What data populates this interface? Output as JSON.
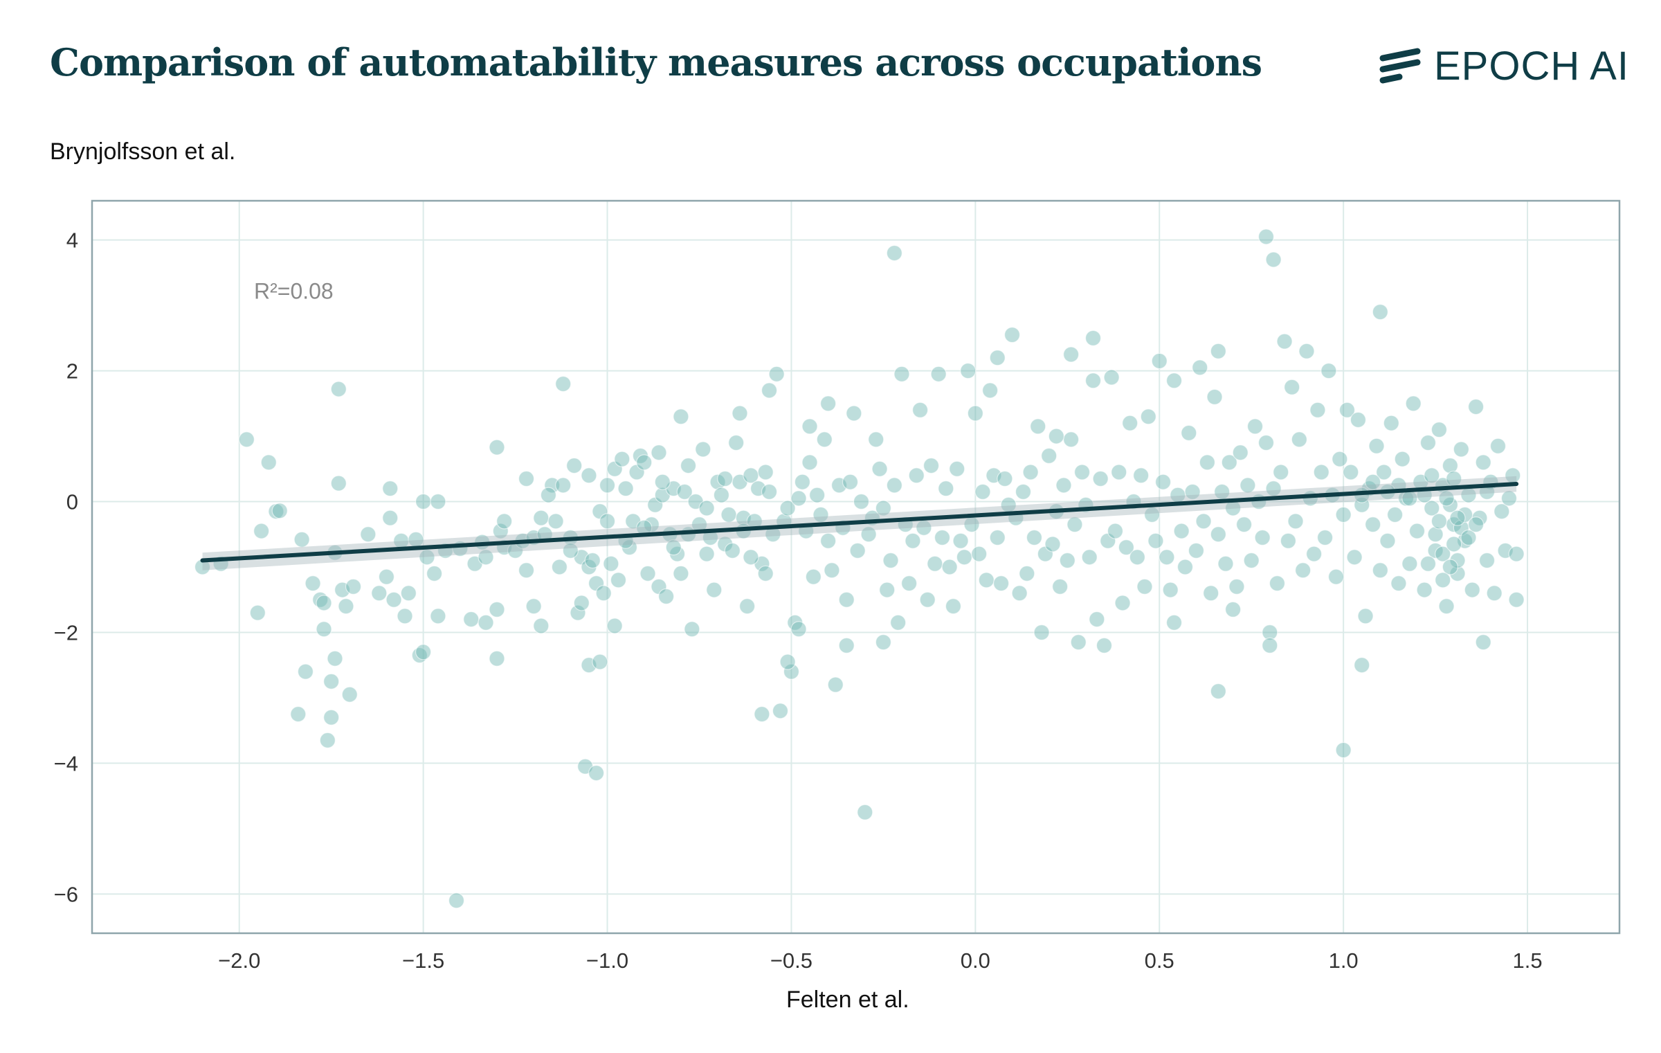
{
  "header": {
    "title": "Comparison of automatability measures across occupations",
    "logo_text": "EPOCH AI"
  },
  "chart_data": {
    "type": "scatter",
    "xlabel": "Felten et al.",
    "ylabel": "Brynjolfsson et al.",
    "xlim": [
      -2.4,
      1.75
    ],
    "ylim": [
      -6.6,
      4.6
    ],
    "xticks": [
      -2.0,
      -1.5,
      -1.0,
      -0.5,
      0.0,
      0.5,
      1.0,
      1.5
    ],
    "xtick_labels": [
      "−2.0",
      "−1.5",
      "−1.0",
      "−0.5",
      "0.0",
      "0.5",
      "1.0",
      "1.5"
    ],
    "yticks": [
      4,
      2,
      0,
      -2,
      -4,
      -6
    ],
    "ytick_labels": [
      "4",
      "2",
      "0",
      "−2",
      "−4",
      "−6"
    ],
    "grid": true,
    "annotation": "R²=0.08",
    "point_color": "#6fb5b1",
    "line_color": "#0f3d46",
    "regression": {
      "x": [
        -2.1,
        1.47
      ],
      "y": [
        -0.9,
        0.27
      ],
      "ci_lower": [
        -1.05,
        0.15
      ],
      "ci_upper": [
        -0.78,
        0.39
      ]
    },
    "points": [
      [
        -2.1,
        -1.0
      ],
      [
        -2.05,
        -0.95
      ],
      [
        -1.98,
        0.95
      ],
      [
        -1.95,
        -1.7
      ],
      [
        -1.94,
        -0.45
      ],
      [
        -1.92,
        0.6
      ],
      [
        -1.9,
        -0.15
      ],
      [
        -1.89,
        -0.14
      ],
      [
        -1.84,
        -3.25
      ],
      [
        -1.83,
        -0.58
      ],
      [
        -1.82,
        -2.6
      ],
      [
        -1.8,
        -1.25
      ],
      [
        -1.78,
        -1.5
      ],
      [
        -1.77,
        -1.95
      ],
      [
        -1.77,
        -1.55
      ],
      [
        -1.76,
        -3.65
      ],
      [
        -1.75,
        -2.75
      ],
      [
        -1.75,
        -3.3
      ],
      [
        -1.74,
        -2.4
      ],
      [
        -1.74,
        -0.78
      ],
      [
        -1.73,
        0.28
      ],
      [
        -1.73,
        1.72
      ],
      [
        -1.72,
        -1.35
      ],
      [
        -1.71,
        -1.6
      ],
      [
        -1.7,
        -2.95
      ],
      [
        -1.69,
        -1.3
      ],
      [
        -1.65,
        -0.5
      ],
      [
        -1.62,
        -1.4
      ],
      [
        -1.6,
        -1.15
      ],
      [
        -1.59,
        0.2
      ],
      [
        -1.59,
        -0.25
      ],
      [
        -1.58,
        -1.5
      ],
      [
        -1.56,
        -0.6
      ],
      [
        -1.55,
        -1.75
      ],
      [
        -1.54,
        -1.4
      ],
      [
        -1.52,
        -0.58
      ],
      [
        -1.51,
        -2.35
      ],
      [
        -1.5,
        0.0
      ],
      [
        -1.49,
        -0.85
      ],
      [
        -1.47,
        -1.1
      ],
      [
        -1.46,
        0.0
      ],
      [
        -1.46,
        -1.75
      ],
      [
        -1.44,
        -0.75
      ],
      [
        -1.4,
        -0.72
      ],
      [
        -1.37,
        -1.8
      ],
      [
        -1.36,
        -0.95
      ],
      [
        -1.34,
        -0.62
      ],
      [
        -1.33,
        -1.85
      ],
      [
        -1.33,
        -0.85
      ],
      [
        -1.3,
        -2.4
      ],
      [
        -1.3,
        -1.65
      ],
      [
        -1.3,
        0.83
      ],
      [
        -1.29,
        -0.45
      ],
      [
        -1.28,
        -0.7
      ],
      [
        -1.25,
        -0.75
      ],
      [
        -1.23,
        -0.6
      ],
      [
        -1.22,
        -1.05
      ],
      [
        -1.2,
        -0.55
      ],
      [
        -1.2,
        -1.6
      ],
      [
        -1.18,
        -0.25
      ],
      [
        -1.17,
        -0.5
      ],
      [
        -1.15,
        0.25
      ],
      [
        -1.13,
        -1.0
      ],
      [
        -1.12,
        0.25
      ],
      [
        -1.12,
        1.8
      ],
      [
        -1.1,
        -0.55
      ],
      [
        -1.09,
        0.55
      ],
      [
        -1.08,
        -1.7
      ],
      [
        -1.07,
        -1.55
      ],
      [
        -1.07,
        -0.85
      ],
      [
        -1.06,
        -4.05
      ],
      [
        -1.05,
        -1.0
      ],
      [
        -1.05,
        -2.5
      ],
      [
        -1.04,
        -0.9
      ],
      [
        -1.03,
        -1.25
      ],
      [
        -1.02,
        -2.45
      ],
      [
        -1.02,
        -0.15
      ],
      [
        -1.01,
        -1.4
      ],
      [
        -1.0,
        -0.3
      ],
      [
        -0.99,
        -0.95
      ],
      [
        -0.98,
        0.5
      ],
      [
        -0.97,
        -1.2
      ],
      [
        -0.96,
        0.65
      ],
      [
        -0.95,
        0.2
      ],
      [
        -0.94,
        -0.7
      ],
      [
        -0.93,
        -0.3
      ],
      [
        -0.92,
        0.45
      ],
      [
        -0.91,
        0.7
      ],
      [
        -0.9,
        0.6
      ],
      [
        -0.89,
        -1.1
      ],
      [
        -0.88,
        -0.35
      ],
      [
        -0.87,
        -0.05
      ],
      [
        -0.86,
        -1.3
      ],
      [
        -0.85,
        0.1
      ],
      [
        -0.84,
        -1.45
      ],
      [
        -0.83,
        -0.5
      ],
      [
        -0.82,
        0.2
      ],
      [
        -0.81,
        -0.8
      ],
      [
        -0.8,
        1.3
      ],
      [
        -0.8,
        -1.1
      ],
      [
        -0.79,
        0.15
      ],
      [
        -0.78,
        -0.5
      ],
      [
        -0.77,
        -1.95
      ],
      [
        -0.76,
        0.0
      ],
      [
        -0.75,
        -0.35
      ],
      [
        -0.74,
        0.8
      ],
      [
        -0.73,
        -0.8
      ],
      [
        -0.72,
        -0.55
      ],
      [
        -0.71,
        -1.35
      ],
      [
        -0.7,
        0.3
      ],
      [
        -0.69,
        0.1
      ],
      [
        -0.68,
        -0.65
      ],
      [
        -0.67,
        -0.2
      ],
      [
        -0.66,
        -0.75
      ],
      [
        -0.65,
        0.9
      ],
      [
        -0.64,
        0.3
      ],
      [
        -0.63,
        -0.25
      ],
      [
        -0.62,
        -1.6
      ],
      [
        -0.61,
        0.4
      ],
      [
        -0.6,
        -0.3
      ],
      [
        -0.59,
        0.2
      ],
      [
        -0.58,
        -0.95
      ],
      [
        -0.57,
        -1.1
      ],
      [
        -0.56,
        0.15
      ],
      [
        -0.55,
        -0.5
      ],
      [
        -0.54,
        1.95
      ],
      [
        -0.53,
        -3.2
      ],
      [
        -0.52,
        -0.3
      ],
      [
        -0.51,
        -0.1
      ],
      [
        -0.5,
        -2.6
      ],
      [
        -0.49,
        -1.85
      ],
      [
        -0.48,
        -1.95
      ],
      [
        -0.47,
        0.3
      ],
      [
        -0.46,
        -0.45
      ],
      [
        -0.45,
        0.6
      ],
      [
        -0.44,
        -1.15
      ],
      [
        -0.43,
        0.1
      ],
      [
        -0.42,
        -0.2
      ],
      [
        -0.41,
        0.95
      ],
      [
        -0.4,
        -0.6
      ],
      [
        -0.39,
        -1.05
      ],
      [
        -0.38,
        -2.8
      ],
      [
        -0.37,
        0.25
      ],
      [
        -0.36,
        -0.4
      ],
      [
        -0.35,
        -1.5
      ],
      [
        -0.34,
        0.3
      ],
      [
        -0.33,
        1.35
      ],
      [
        -0.32,
        -0.75
      ],
      [
        -0.31,
        0.0
      ],
      [
        -0.3,
        -4.75
      ],
      [
        -0.29,
        -0.5
      ],
      [
        -0.28,
        -0.25
      ],
      [
        -0.27,
        0.95
      ],
      [
        -0.26,
        0.5
      ],
      [
        -0.25,
        -0.1
      ],
      [
        -0.24,
        -1.35
      ],
      [
        -0.23,
        -0.9
      ],
      [
        -0.22,
        0.25
      ],
      [
        -0.21,
        -1.85
      ],
      [
        -0.2,
        1.95
      ],
      [
        -0.19,
        -0.35
      ],
      [
        -0.18,
        -1.25
      ],
      [
        -0.17,
        -0.6
      ],
      [
        -0.16,
        0.4
      ],
      [
        -0.15,
        1.4
      ],
      [
        -0.14,
        -0.4
      ],
      [
        -0.13,
        -1.5
      ],
      [
        -0.12,
        0.55
      ],
      [
        -0.11,
        -0.95
      ],
      [
        -0.1,
        1.95
      ],
      [
        -0.09,
        -0.55
      ],
      [
        -0.08,
        0.2
      ],
      [
        -0.07,
        -1.0
      ],
      [
        -0.06,
        -1.6
      ],
      [
        -0.05,
        0.5
      ],
      [
        -0.04,
        -0.6
      ],
      [
        -0.03,
        -0.85
      ],
      [
        -0.02,
        2.0
      ],
      [
        -0.01,
        -0.35
      ],
      [
        0.0,
        1.35
      ],
      [
        0.01,
        -0.8
      ],
      [
        0.02,
        0.15
      ],
      [
        0.03,
        -1.2
      ],
      [
        0.04,
        1.7
      ],
      [
        0.05,
        0.4
      ],
      [
        0.06,
        -0.55
      ],
      [
        0.07,
        -1.25
      ],
      [
        0.08,
        0.35
      ],
      [
        0.09,
        -0.05
      ],
      [
        0.1,
        2.55
      ],
      [
        0.11,
        -0.25
      ],
      [
        0.12,
        -1.4
      ],
      [
        0.13,
        0.15
      ],
      [
        0.14,
        -1.1
      ],
      [
        0.15,
        0.45
      ],
      [
        0.16,
        -0.55
      ],
      [
        0.17,
        1.15
      ],
      [
        0.18,
        -2.0
      ],
      [
        0.19,
        -0.8
      ],
      [
        0.2,
        0.7
      ],
      [
        0.21,
        -0.65
      ],
      [
        0.22,
        -0.15
      ],
      [
        0.23,
        -1.3
      ],
      [
        0.24,
        0.25
      ],
      [
        0.25,
        -0.9
      ],
      [
        0.26,
        0.95
      ],
      [
        0.27,
        -0.35
      ],
      [
        0.28,
        -2.15
      ],
      [
        0.29,
        0.45
      ],
      [
        0.3,
        -0.05
      ],
      [
        0.31,
        -0.85
      ],
      [
        0.32,
        1.85
      ],
      [
        0.33,
        -1.8
      ],
      [
        0.34,
        0.35
      ],
      [
        0.35,
        -2.2
      ],
      [
        0.36,
        -0.6
      ],
      [
        0.37,
        1.9
      ],
      [
        0.38,
        -0.45
      ],
      [
        0.39,
        0.45
      ],
      [
        0.4,
        -1.55
      ],
      [
        0.41,
        -0.7
      ],
      [
        0.42,
        1.2
      ],
      [
        0.43,
        0.0
      ],
      [
        0.44,
        -0.85
      ],
      [
        0.45,
        0.4
      ],
      [
        0.46,
        -1.3
      ],
      [
        0.47,
        1.3
      ],
      [
        0.48,
        -0.2
      ],
      [
        0.49,
        -0.6
      ],
      [
        0.5,
        2.15
      ],
      [
        0.51,
        0.3
      ],
      [
        0.52,
        -0.85
      ],
      [
        0.53,
        -1.35
      ],
      [
        0.54,
        1.85
      ],
      [
        0.55,
        0.1
      ],
      [
        0.56,
        -0.45
      ],
      [
        0.57,
        -1.0
      ],
      [
        0.58,
        1.05
      ],
      [
        0.59,
        0.15
      ],
      [
        0.6,
        -0.75
      ],
      [
        0.61,
        2.05
      ],
      [
        0.62,
        -0.3
      ],
      [
        0.63,
        0.6
      ],
      [
        0.64,
        -1.4
      ],
      [
        0.65,
        1.6
      ],
      [
        0.66,
        -0.5
      ],
      [
        0.67,
        0.15
      ],
      [
        0.68,
        -0.95
      ],
      [
        0.69,
        0.6
      ],
      [
        0.7,
        -0.1
      ],
      [
        0.71,
        -1.3
      ],
      [
        0.72,
        0.75
      ],
      [
        0.73,
        -0.35
      ],
      [
        0.74,
        0.25
      ],
      [
        0.75,
        -0.9
      ],
      [
        0.76,
        1.15
      ],
      [
        0.77,
        0.0
      ],
      [
        0.78,
        -0.55
      ],
      [
        0.79,
        0.9
      ],
      [
        0.8,
        -2.0
      ],
      [
        0.81,
        0.2
      ],
      [
        0.82,
        -1.25
      ],
      [
        0.83,
        0.45
      ],
      [
        0.84,
        2.45
      ],
      [
        0.85,
        -0.6
      ],
      [
        0.86,
        1.75
      ],
      [
        0.87,
        -0.3
      ],
      [
        0.88,
        0.95
      ],
      [
        0.89,
        -1.05
      ],
      [
        0.9,
        2.3
      ],
      [
        0.91,
        0.05
      ],
      [
        0.92,
        -0.8
      ],
      [
        0.93,
        1.4
      ],
      [
        0.94,
        0.45
      ],
      [
        0.95,
        -0.55
      ],
      [
        0.96,
        2.0
      ],
      [
        0.97,
        0.1
      ],
      [
        0.98,
        -1.15
      ],
      [
        0.99,
        0.65
      ],
      [
        1.0,
        -0.2
      ],
      [
        1.01,
        1.4
      ],
      [
        1.02,
        0.45
      ],
      [
        1.03,
        -0.85
      ],
      [
        1.04,
        1.25
      ],
      [
        1.05,
        -0.05
      ],
      [
        1.06,
        -1.75
      ],
      [
        1.07,
        0.2
      ],
      [
        1.08,
        -0.35
      ],
      [
        1.09,
        0.85
      ],
      [
        1.1,
        -1.05
      ],
      [
        1.11,
        0.45
      ],
      [
        1.12,
        -0.6
      ],
      [
        1.13,
        1.2
      ],
      [
        1.14,
        -0.2
      ],
      [
        1.15,
        -1.25
      ],
      [
        1.16,
        0.65
      ],
      [
        1.17,
        0.05
      ],
      [
        1.18,
        -0.95
      ],
      [
        1.19,
        1.5
      ],
      [
        1.2,
        -0.45
      ],
      [
        1.21,
        0.3
      ],
      [
        1.22,
        -1.35
      ],
      [
        1.23,
        0.9
      ],
      [
        1.24,
        -0.1
      ],
      [
        1.25,
        -0.75
      ],
      [
        1.26,
        1.1
      ],
      [
        1.27,
        0.25
      ],
      [
        1.28,
        -1.6
      ],
      [
        1.29,
        0.55
      ],
      [
        1.3,
        -0.35
      ],
      [
        1.31,
        -1.1
      ],
      [
        1.32,
        0.8
      ],
      [
        1.33,
        -0.6
      ],
      [
        1.34,
        0.1
      ],
      [
        1.35,
        -1.35
      ],
      [
        1.36,
        1.45
      ],
      [
        1.37,
        -0.25
      ],
      [
        1.38,
        0.6
      ],
      [
        1.39,
        -0.9
      ],
      [
        1.4,
        0.3
      ],
      [
        1.41,
        -1.4
      ],
      [
        1.42,
        0.85
      ],
      [
        1.43,
        -0.15
      ],
      [
        1.44,
        -0.75
      ],
      [
        1.45,
        0.05
      ],
      [
        1.46,
        0.4
      ],
      [
        1.47,
        -0.8
      ],
      [
        1.47,
        -1.5
      ],
      [
        -0.86,
        0.75
      ],
      [
        -0.73,
        -0.1
      ],
      [
        -0.45,
        1.15
      ],
      [
        -0.22,
        3.8
      ],
      [
        0.79,
        4.05
      ],
      [
        0.81,
        3.7
      ],
      [
        1.1,
        2.9
      ],
      [
        0.22,
        1.0
      ],
      [
        0.32,
        2.5
      ],
      [
        0.26,
        2.25
      ],
      [
        0.06,
        2.2
      ],
      [
        0.66,
        2.3
      ],
      [
        0.8,
        -2.2
      ],
      [
        1.0,
        -3.8
      ],
      [
        0.66,
        -2.9
      ],
      [
        1.05,
        -2.5
      ],
      [
        1.38,
        -2.15
      ],
      [
        0.54,
        -1.85
      ],
      [
        0.7,
        -1.65
      ],
      [
        -0.25,
        -2.15
      ],
      [
        -0.35,
        -2.2
      ],
      [
        -0.51,
        -2.45
      ],
      [
        -0.58,
        -3.25
      ],
      [
        -0.98,
        -1.9
      ],
      [
        -1.41,
        -6.1
      ],
      [
        -1.03,
        -4.15
      ],
      [
        -1.5,
        -2.3
      ],
      [
        -1.18,
        -1.9
      ],
      [
        -0.4,
        1.5
      ],
      [
        -0.64,
        1.35
      ],
      [
        -0.56,
        1.7
      ],
      [
        -0.57,
        0.45
      ],
      [
        -0.95,
        -0.6
      ],
      [
        -1.0,
        0.25
      ],
      [
        -0.9,
        -0.4
      ],
      [
        -0.85,
        0.3
      ],
      [
        -0.82,
        -0.7
      ],
      [
        -0.78,
        0.55
      ],
      [
        -1.14,
        -0.3
      ],
      [
        -1.16,
        0.1
      ],
      [
        -1.1,
        -0.75
      ],
      [
        -1.05,
        0.4
      ],
      [
        -1.22,
        0.35
      ],
      [
        -1.28,
        -0.3
      ],
      [
        -0.63,
        -0.45
      ],
      [
        -0.68,
        0.35
      ],
      [
        -0.61,
        -0.85
      ],
      [
        -0.48,
        0.05
      ],
      [
        1.25,
        -0.5
      ],
      [
        1.27,
        -0.8
      ],
      [
        1.29,
        -0.05
      ],
      [
        1.3,
        -0.65
      ],
      [
        1.31,
        -0.9
      ],
      [
        1.32,
        -0.4
      ],
      [
        1.28,
        0.05
      ],
      [
        1.33,
        -0.2
      ],
      [
        1.34,
        -0.55
      ],
      [
        1.26,
        -0.3
      ],
      [
        1.3,
        0.35
      ],
      [
        1.22,
        0.1
      ],
      [
        1.24,
        0.4
      ],
      [
        1.18,
        0.05
      ],
      [
        1.15,
        0.25
      ],
      [
        1.12,
        0.15
      ],
      [
        1.08,
        0.3
      ],
      [
        1.05,
        0.1
      ],
      [
        1.36,
        -0.35
      ],
      [
        1.39,
        0.15
      ],
      [
        1.29,
        -1.0
      ],
      [
        1.27,
        -1.2
      ],
      [
        1.31,
        -0.25
      ],
      [
        1.23,
        -0.95
      ]
    ]
  }
}
